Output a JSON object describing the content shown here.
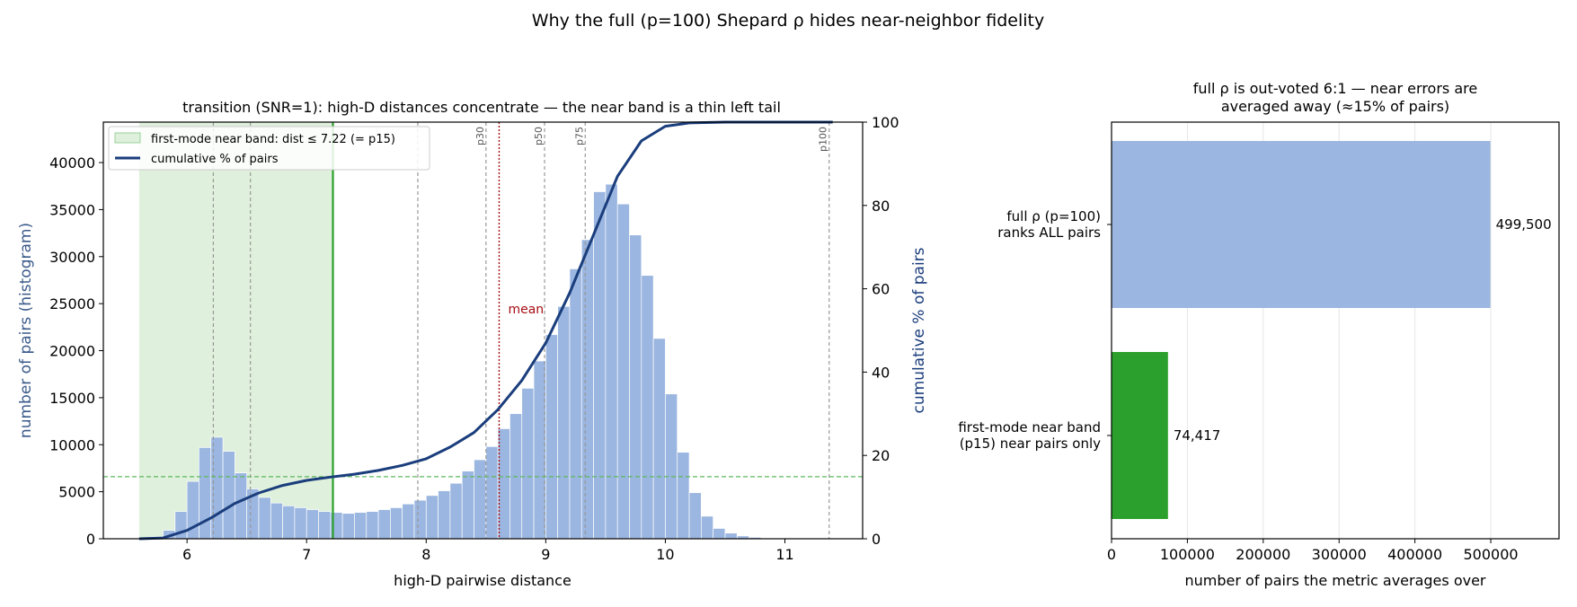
{
  "suptitle": "Why the full (p=100) Shepard ρ hides near-neighbor fidelity",
  "colors": {
    "hist": "#9bb6e0",
    "cumulative": "#1a3d7c",
    "near_band": "#2ca02c",
    "near_band_fill": "#dff0dc",
    "mean_line": "#a50f15",
    "percentile_line": "#999999",
    "bar_full": "#9bb6e0",
    "bar_near": "#2ca02c"
  },
  "chart_data": [
    {
      "type": "bar",
      "title": "transition (SNR=1): high-D distances concentrate — the near band is a thin left tail",
      "xlabel": "high-D pairwise distance",
      "ylabel": "number of pairs (histogram)",
      "ylabel_right": "cumulative % of pairs",
      "xlim": [
        5.3,
        11.65
      ],
      "ylim": [
        0,
        44300
      ],
      "ylim_right": [
        0,
        100
      ],
      "x_ticks": [
        "6",
        "7",
        "8",
        "9",
        "10",
        "11"
      ],
      "y_ticks": [
        "0",
        "5000",
        "10000",
        "15000",
        "20000",
        "25000",
        "30000",
        "35000",
        "40000"
      ],
      "y_ticks_right": [
        "0",
        "20",
        "40",
        "60",
        "80",
        "100"
      ],
      "grid": false,
      "legend_position": "upper-left",
      "legend": [
        "first-mode near band: dist ≤ 7.22 (= p15)",
        "cumulative % of pairs"
      ],
      "histogram": {
        "bin_start": 5.6,
        "bin_width": 0.1,
        "counts": [
          80,
          200,
          900,
          2900,
          6100,
          9700,
          10800,
          9300,
          7000,
          5300,
          4400,
          3800,
          3500,
          3300,
          3100,
          2900,
          2800,
          2700,
          2800,
          2900,
          3100,
          3300,
          3700,
          4100,
          4600,
          5100,
          5900,
          7200,
          8400,
          9800,
          11700,
          13300,
          16000,
          18900,
          21700,
          24700,
          28700,
          31800,
          36900,
          37700,
          35600,
          32300,
          28000,
          21300,
          15400,
          9200,
          4900,
          2400,
          1100,
          600,
          300,
          150,
          80,
          40,
          20,
          10,
          5,
          3,
          2,
          1,
          1,
          1
        ]
      },
      "cumulative_curve": {
        "x": [
          5.6,
          5.8,
          6.0,
          6.2,
          6.4,
          6.6,
          6.8,
          7.0,
          7.2,
          7.4,
          7.6,
          7.8,
          8.0,
          8.2,
          8.4,
          8.6,
          8.8,
          9.0,
          9.2,
          9.4,
          9.6,
          9.8,
          10.0,
          10.2,
          10.5,
          11.0,
          11.4
        ],
        "y": [
          0,
          0.2,
          2.0,
          5.0,
          8.5,
          11.0,
          12.8,
          14.0,
          14.8,
          15.5,
          16.4,
          17.6,
          19.2,
          22.0,
          25.5,
          31.0,
          38.0,
          47.0,
          59.0,
          73.0,
          87.0,
          95.5,
          99.0,
          99.8,
          100,
          100,
          100
        ]
      },
      "near_band": {
        "from": 5.6,
        "to": 7.22
      },
      "near_band_hline": 6600,
      "percentile_lines": [
        {
          "x": 6.22,
          "label": ""
        },
        {
          "x": 6.53,
          "label": ""
        },
        {
          "x": 7.93,
          "label": ""
        },
        {
          "x": 8.5,
          "label": "p30"
        },
        {
          "x": 8.99,
          "label": "p50"
        },
        {
          "x": 9.33,
          "label": "p75"
        },
        {
          "x": 11.37,
          "label": "p100"
        }
      ],
      "mean_line": {
        "x": 8.61,
        "label": "mean"
      }
    },
    {
      "type": "bar",
      "orientation": "horizontal",
      "title_line1": "full ρ is out-voted 6:1 — near errors are",
      "title_line2": "averaged away (≈15% of pairs)",
      "xlabel": "number of pairs the metric averages over",
      "xlim": [
        0,
        590000
      ],
      "x_ticks": [
        "0",
        "100000",
        "200000",
        "300000",
        "400000",
        "500000"
      ],
      "grid": true,
      "bars": [
        {
          "label_line1": "full ρ (p=100)",
          "label_line2": "ranks ALL pairs",
          "value": 499500,
          "value_label": "499,500"
        },
        {
          "label_line1": "first-mode near band",
          "label_line2": "(p15) near pairs only",
          "value": 74417,
          "value_label": "74,417"
        }
      ]
    }
  ]
}
